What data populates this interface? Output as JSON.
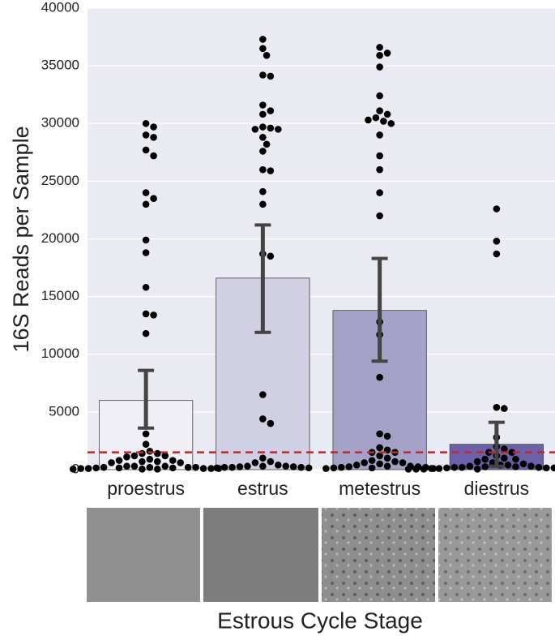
{
  "chart_data": {
    "type": "bar",
    "y_label": "16S Reads per Sample",
    "x_label": "Estrous Cycle Stage",
    "categories": [
      "proestrus",
      "estrus",
      "metestrus",
      "diestrus"
    ],
    "values": [
      6000,
      16600,
      13800,
      2200
    ],
    "colors": [
      "#f0eff5",
      "#d1cfe3",
      "#a5a2c8",
      "#6e60a8"
    ],
    "error_low": [
      3600,
      11900,
      9400,
      300
    ],
    "error_high": [
      8600,
      21200,
      18300,
      4100
    ],
    "points": [
      [
        30000,
        29700,
        29000,
        28800,
        27700,
        27200,
        24000,
        23500,
        23000,
        19900,
        18800,
        15800,
        13500,
        13400,
        11800,
        3100,
        2200,
        1600,
        1400,
        1400,
        1200,
        1200,
        1100,
        900,
        800,
        800,
        700,
        700,
        600,
        600,
        300,
        300,
        300,
        200,
        200,
        200,
        200,
        150,
        150,
        150,
        100,
        100,
        100,
        100,
        100,
        50,
        50,
        50
      ],
      [
        37300,
        36500,
        35900,
        34200,
        34100,
        31600,
        31100,
        30800,
        29700,
        29600,
        29500,
        29500,
        28800,
        28200,
        27600,
        26000,
        25900,
        24100,
        23000,
        18700,
        18500,
        6500,
        4400,
        4000,
        1000,
        700,
        600,
        400,
        300,
        300,
        300,
        250,
        250,
        200,
        200,
        200,
        150,
        150
      ],
      [
        36600,
        36100,
        35900,
        34900,
        32400,
        31100,
        30800,
        30500,
        30300,
        30200,
        30000,
        29000,
        27200,
        26000,
        24000,
        22000,
        12800,
        11700,
        8000,
        3100,
        2900,
        1900,
        1700,
        1500,
        1500,
        1200,
        1000,
        800,
        700,
        600,
        600,
        500,
        400,
        300,
        300,
        250,
        250,
        200,
        200,
        150,
        150,
        100,
        100
      ],
      [
        22600,
        19800,
        18700,
        5400,
        5300,
        2800,
        2000,
        1800,
        1500,
        1500,
        1200,
        1000,
        900,
        900,
        700,
        600,
        500,
        400,
        400,
        300,
        300,
        250,
        250,
        200,
        200,
        200,
        150,
        150,
        150,
        100,
        100,
        100,
        100,
        50,
        50,
        50,
        50,
        50,
        50
      ]
    ],
    "point_color": "#000000",
    "threshold": 1500,
    "threshold_color": "#c0282b",
    "ylim": [
      0,
      40000
    ],
    "yticks": [
      0,
      5000,
      10000,
      15000,
      20000,
      25000,
      30000,
      35000,
      40000
    ],
    "grid": true
  }
}
